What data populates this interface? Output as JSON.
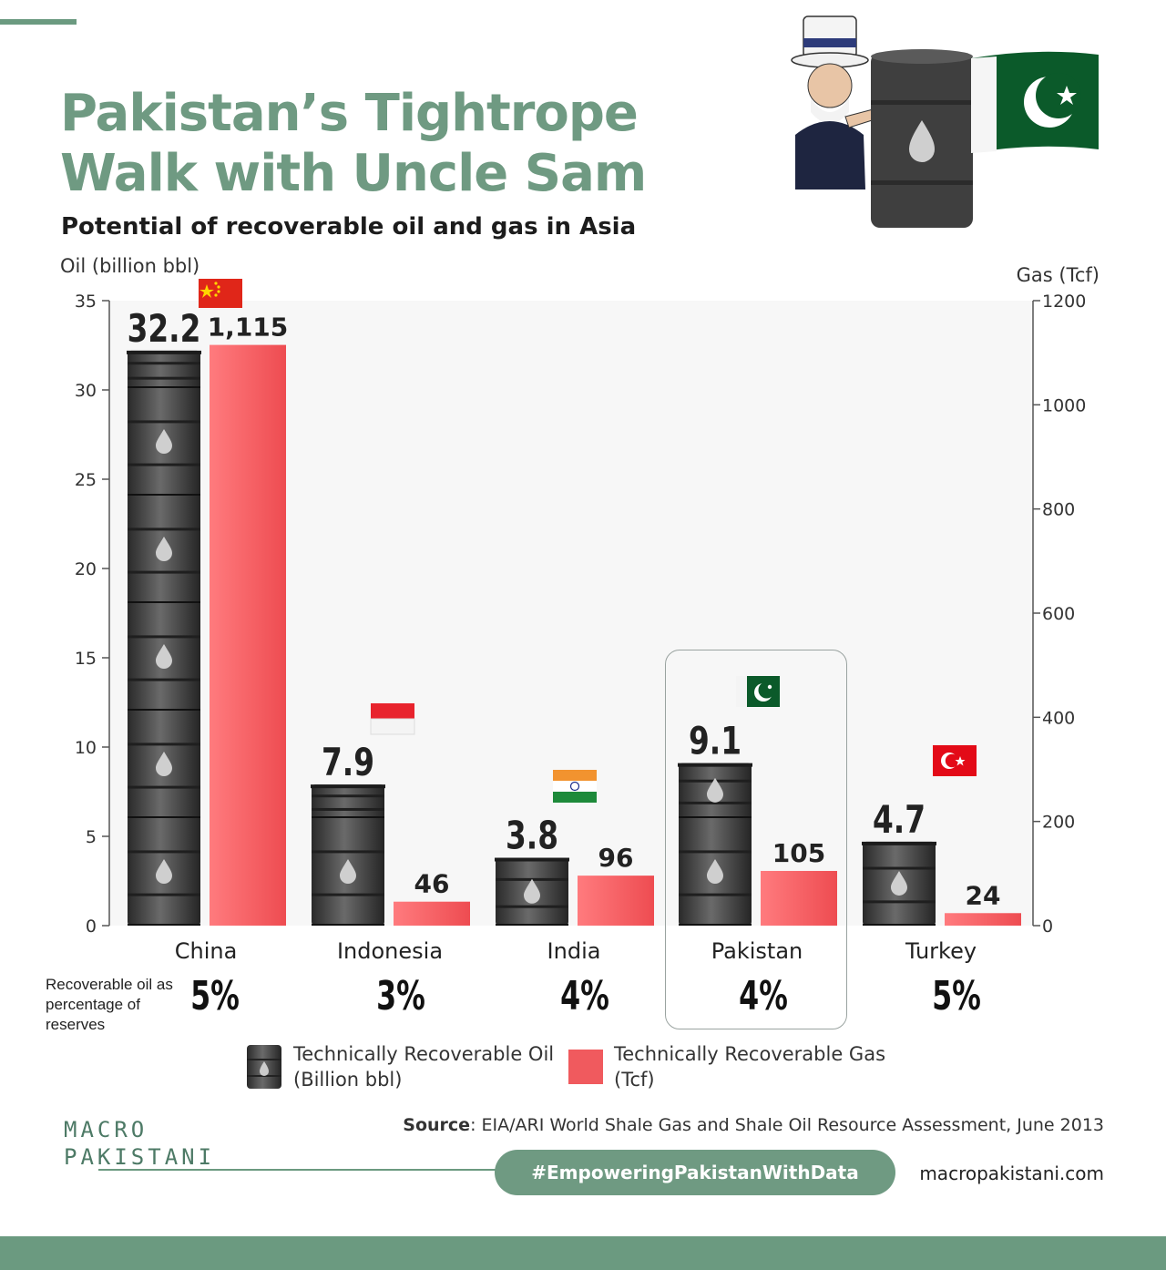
{
  "header": {
    "title": "Pakistan’s Tightrope Walk with Uncle Sam",
    "subtitle": "Potential of recoverable oil and gas in Asia"
  },
  "chart_data": {
    "type": "bar",
    "categories": [
      "China",
      "Indonesia",
      "India",
      "Pakistan",
      "Turkey"
    ],
    "series": [
      {
        "name": "Technically Recoverable Oil (Billion bbl)",
        "axis": "left",
        "values": [
          32.2,
          7.9,
          3.8,
          9.1,
          4.7
        ],
        "labels": [
          "32.2",
          "7.9",
          "3.8",
          "9.1",
          "4.7"
        ],
        "color": "#3a3a3a"
      },
      {
        "name": "Technically Recoverable Gas (Tcf)",
        "axis": "right",
        "values": [
          1115,
          46,
          96,
          105,
          24
        ],
        "labels": [
          "1,115",
          "46",
          "96",
          "105",
          "24"
        ],
        "color": "#f05a5e"
      }
    ],
    "ylabel": "Oil (billion bbl)",
    "ylim": [
      0,
      35
    ],
    "yticks": [
      "0",
      "5",
      "10",
      "15",
      "20",
      "25",
      "30",
      "35"
    ],
    "y2label": "Gas (Tcf)",
    "y2lim": [
      0,
      1200
    ],
    "y2ticks": [
      "0",
      "200",
      "400",
      "600",
      "800",
      "1000",
      "1200"
    ],
    "recoverable_percent_label": "Recoverable oil as percentage of reserves",
    "recoverable_percent": [
      "5%",
      "3%",
      "4%",
      "4%",
      "5%"
    ],
    "highlight": "Pakistan",
    "legend": {
      "oil": "Technically Recoverable Oil (Billion bbl)",
      "gas": "Technically Recoverable Gas (Tcf)"
    }
  },
  "footer": {
    "logo_line1": "MACRO",
    "logo_line2": "PAKISTANI",
    "source_label": "Source",
    "source_text": ": EIA/ARI World Shale Gas and Shale Oil Resource Assessment, June 2013",
    "hashtag": "#EmpoweringPakistanWithData",
    "website": "macropakistani.com"
  },
  "colors": {
    "accent": "#6f9a82",
    "gas_bar": "#f05a5e",
    "oil_barrel": "#3a3a3a"
  }
}
